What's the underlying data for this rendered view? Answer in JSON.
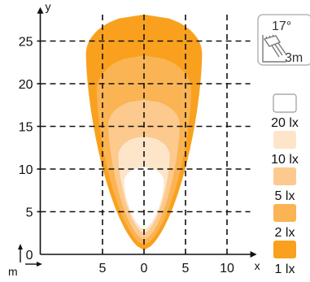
{
  "chart_data": {
    "type": "area",
    "title": "",
    "xlabel": "x",
    "ylabel": "y",
    "unit_label": "m",
    "xlim": [
      -12.5,
      12.5
    ],
    "ylim": [
      0,
      28
    ],
    "x_ticks": [
      -5,
      0,
      5,
      10
    ],
    "x_tick_labels": [
      "5",
      "0",
      "5",
      "10"
    ],
    "y_ticks": [
      0,
      5,
      10,
      15,
      20,
      25
    ],
    "y_tick_labels": [
      "0",
      "5",
      "10",
      "15",
      "20",
      "25"
    ],
    "grid": true,
    "series": [
      {
        "name": "1 lx",
        "color": "#f9a11f",
        "y_start": 0.5,
        "y_end": 28.1,
        "widest_y": 23.5,
        "max_half_width": 7.0
      },
      {
        "name": "2 lx",
        "color": "#fab454",
        "y_start": 1.1,
        "y_end": 23.3,
        "widest_y": 19.2,
        "max_half_width": 5.7
      },
      {
        "name": "5 lx",
        "color": "#fcca8e",
        "y_start": 1.7,
        "y_end": 18.1,
        "widest_y": 15.2,
        "max_half_width": 4.3
      },
      {
        "name": "10 lx",
        "color": "#fde5ca",
        "y_start": 2.5,
        "y_end": 13.8,
        "widest_y": 11.5,
        "max_half_width": 3.1
      },
      {
        "name": "20 lx",
        "color": "#ffffff",
        "y_start": 3.0,
        "y_end": 10.2,
        "widest_y": 8.5,
        "max_half_width": 2.4
      }
    ],
    "legend": {
      "placement": "right",
      "entries": [
        "20 lx",
        "10 lx",
        "5 lx",
        "2 lx",
        "1 lx"
      ],
      "colors": [
        "#ffffff",
        "#fde5ca",
        "#fcca8e",
        "#fab454",
        "#f9a11f"
      ]
    },
    "badge": {
      "angle_label": "17°",
      "height_label": "3m",
      "icon": "mounting-angle-icon"
    }
  }
}
